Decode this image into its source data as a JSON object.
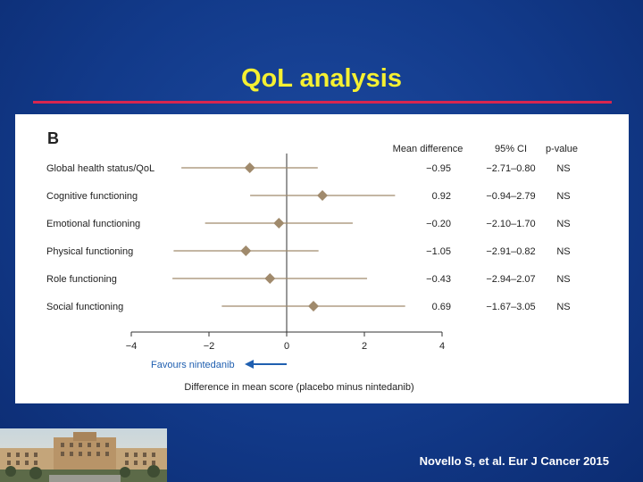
{
  "slide": {
    "title": "QoL analysis",
    "citation": "Novello S, et al. Eur J Cancer 2015"
  },
  "colors": {
    "background": "#123a8a",
    "title": "#f5f032",
    "rule": "#d8264f",
    "marker": "#a08a6c",
    "ci_line": "#a08a6c",
    "arrow": "#1f5fb0"
  },
  "chart_data": {
    "type": "forest",
    "panel_label": "B",
    "column_headers": [
      "Mean difference",
      "95% CI",
      "p-value"
    ],
    "rows": [
      {
        "label": "Global health status/QoL",
        "mean": -0.95,
        "ci": [
          -2.71,
          0.8
        ],
        "mean_text": "−0.95",
        "ci_text": "−2.71–0.80",
        "p": "NS"
      },
      {
        "label": "Cognitive functioning",
        "mean": 0.92,
        "ci": [
          -0.94,
          2.79
        ],
        "mean_text": "0.92",
        "ci_text": "−0.94–2.79",
        "p": "NS"
      },
      {
        "label": "Emotional functioning",
        "mean": -0.2,
        "ci": [
          -2.1,
          1.7
        ],
        "mean_text": "−0.20",
        "ci_text": "−2.10–1.70",
        "p": "NS"
      },
      {
        "label": "Physical functioning",
        "mean": -1.05,
        "ci": [
          -2.91,
          0.82
        ],
        "mean_text": "−1.05",
        "ci_text": "−2.91–0.82",
        "p": "NS"
      },
      {
        "label": "Role functioning",
        "mean": -0.43,
        "ci": [
          -2.94,
          2.07
        ],
        "mean_text": "−0.43",
        "ci_text": "−2.94–2.07",
        "p": "NS"
      },
      {
        "label": "Social functioning",
        "mean": 0.69,
        "ci": [
          -1.67,
          3.05
        ],
        "mean_text": "0.69",
        "ci_text": "−1.67–3.05",
        "p": "NS"
      }
    ],
    "xlim": [
      -4,
      4
    ],
    "xticks": [
      -4,
      -2,
      0,
      2,
      4
    ],
    "xtick_labels": [
      "−4",
      "−2",
      "0",
      "2",
      "4"
    ],
    "reference_line": 0,
    "xlabel": "Difference in mean score (placebo minus nintedanib)",
    "favours_label": "Favours nintedanib"
  }
}
